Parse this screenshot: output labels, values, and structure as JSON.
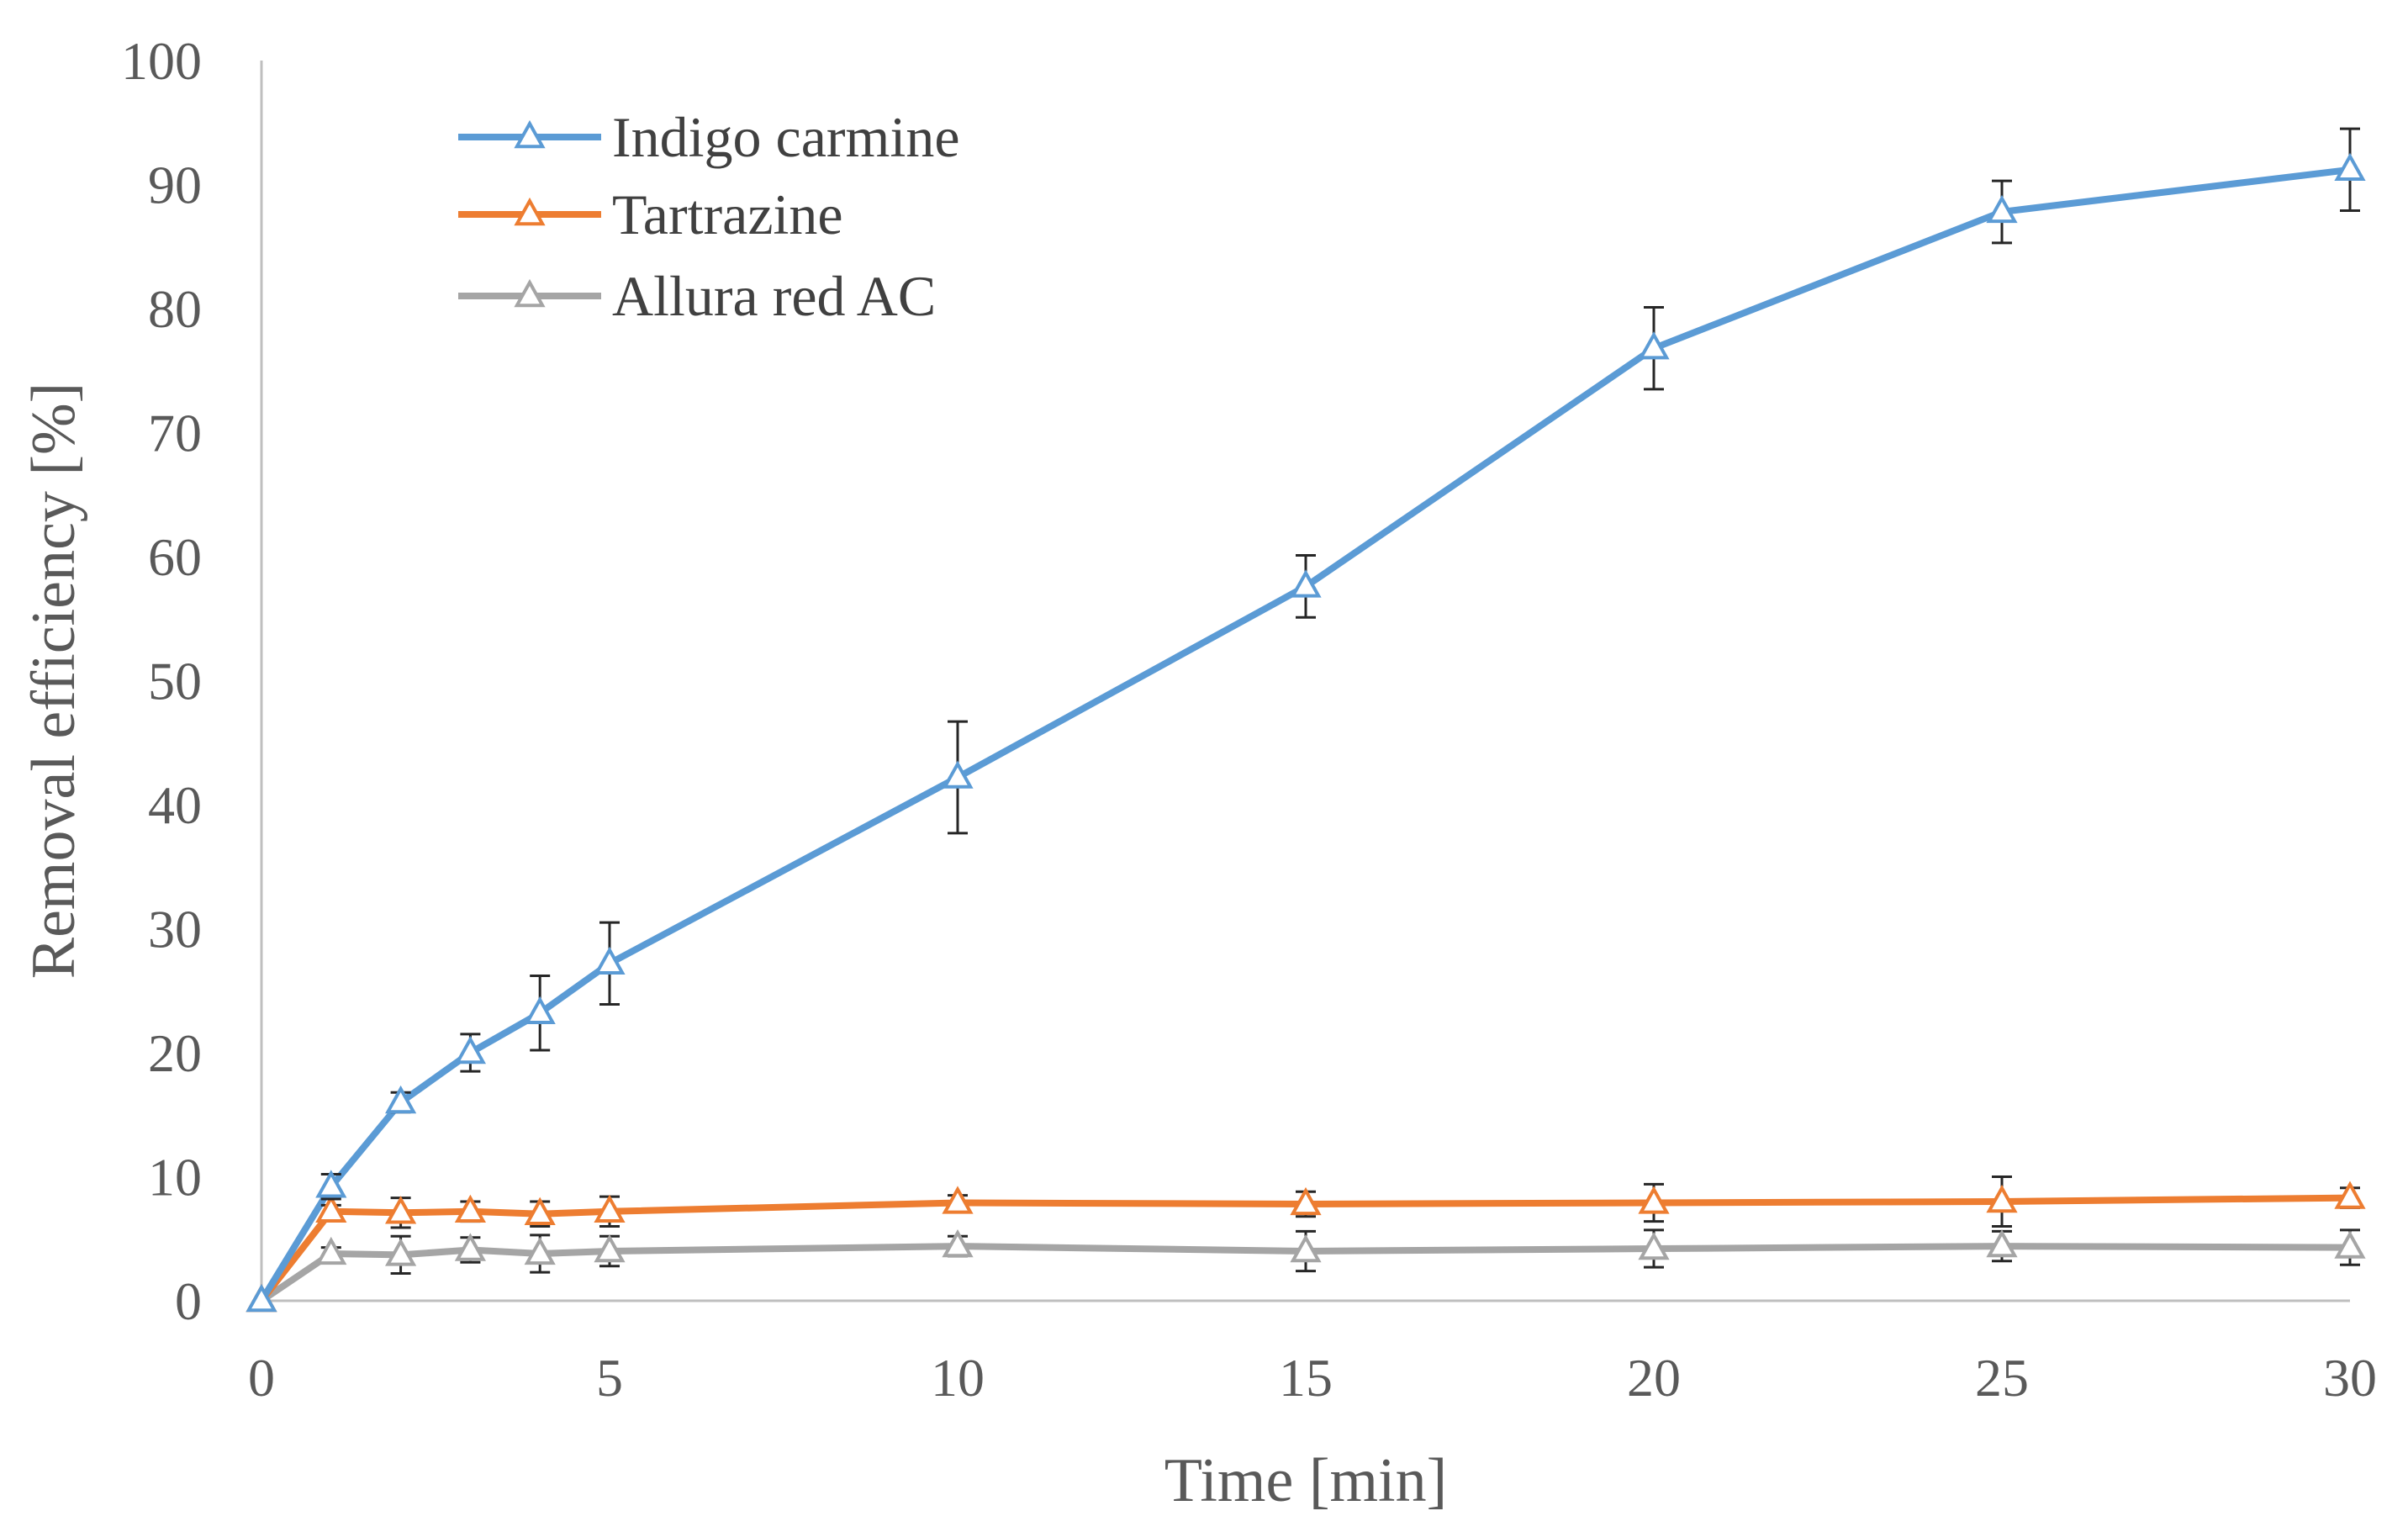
{
  "chart_data": {
    "type": "line",
    "title": "",
    "xlabel": "Time [min]",
    "ylabel": "Removal efficiency [%]",
    "xlim": [
      0,
      30
    ],
    "ylim": [
      0,
      100
    ],
    "xticks": [
      0,
      5,
      10,
      15,
      20,
      25,
      30
    ],
    "yticks": [
      0,
      10,
      20,
      30,
      40,
      50,
      60,
      70,
      80,
      90,
      100
    ],
    "grid": false,
    "legend_position": "top-left",
    "x": [
      0,
      1,
      2,
      3,
      4,
      5,
      10,
      15,
      20,
      25,
      30
    ],
    "series": [
      {
        "name": "Indigo carmine",
        "color": "#5B9BD5",
        "marker": "triangle-open",
        "values": [
          0,
          9.2,
          16.0,
          20.0,
          23.2,
          27.2,
          42.2,
          57.6,
          76.8,
          87.8,
          91.2
        ],
        "errors": [
          0,
          1.0,
          0.8,
          1.5,
          3.0,
          3.3,
          4.5,
          2.5,
          3.3,
          2.5,
          3.3
        ]
      },
      {
        "name": "Tartrazine",
        "color": "#ED7D31",
        "marker": "triangle-open",
        "values": [
          0,
          7.2,
          7.1,
          7.2,
          7.0,
          7.2,
          7.9,
          7.8,
          7.9,
          8.0,
          8.3
        ],
        "errors": [
          0,
          0.5,
          1.2,
          0.8,
          1.0,
          1.2,
          0.6,
          1.0,
          1.5,
          2.0,
          0.8
        ]
      },
      {
        "name": "Allura red AC",
        "color": "#A5A5A5",
        "marker": "triangle-open",
        "values": [
          0,
          3.8,
          3.7,
          4.1,
          3.8,
          4.0,
          4.4,
          4.0,
          4.2,
          4.4,
          4.3
        ],
        "errors": [
          0,
          0.5,
          1.5,
          1.0,
          1.5,
          1.2,
          0.8,
          1.6,
          1.5,
          1.2,
          1.4
        ]
      }
    ]
  }
}
